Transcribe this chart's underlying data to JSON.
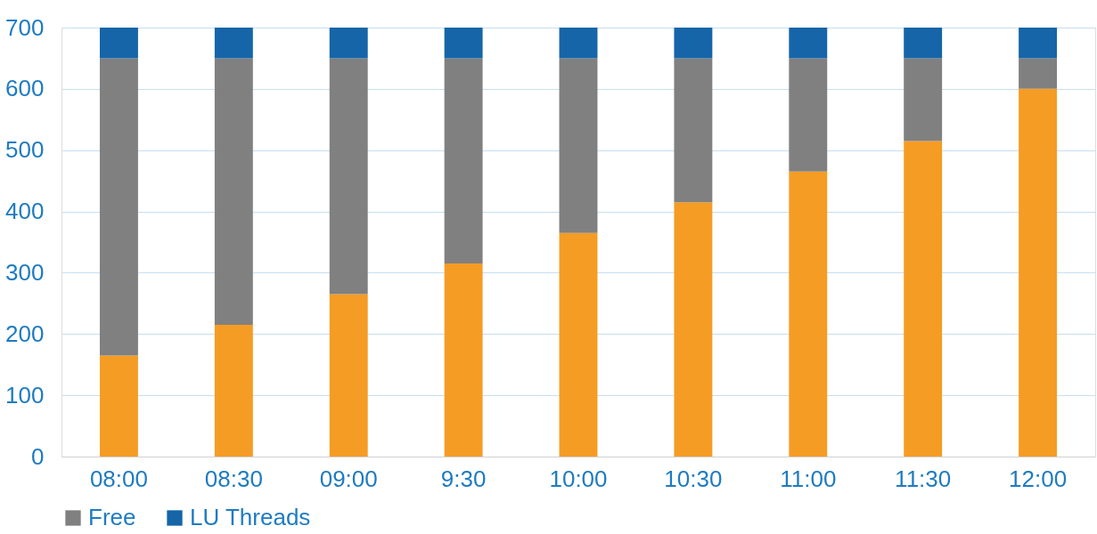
{
  "chart_data": {
    "type": "bar",
    "stacked": true,
    "categories": [
      "08:00",
      "08:30",
      "09:00",
      "9:30",
      "10:00",
      "10:30",
      "11:00",
      "11:30",
      "12:00"
    ],
    "series": [
      {
        "color": "#f59c24",
        "values": [
          165,
          215,
          265,
          315,
          365,
          415,
          465,
          515,
          600
        ]
      },
      {
        "name": "Free",
        "color": "#808080",
        "values": [
          485,
          435,
          385,
          335,
          285,
          235,
          185,
          135,
          50
        ]
      },
      {
        "name": "LU Threads",
        "color": "#1565a8",
        "values": [
          50,
          50,
          50,
          50,
          50,
          50,
          50,
          50,
          50
        ]
      }
    ],
    "ylim": [
      0,
      700
    ],
    "yticks": [
      0,
      100,
      200,
      300,
      400,
      500,
      600,
      700
    ],
    "grid": "y",
    "legend": "bottom"
  }
}
